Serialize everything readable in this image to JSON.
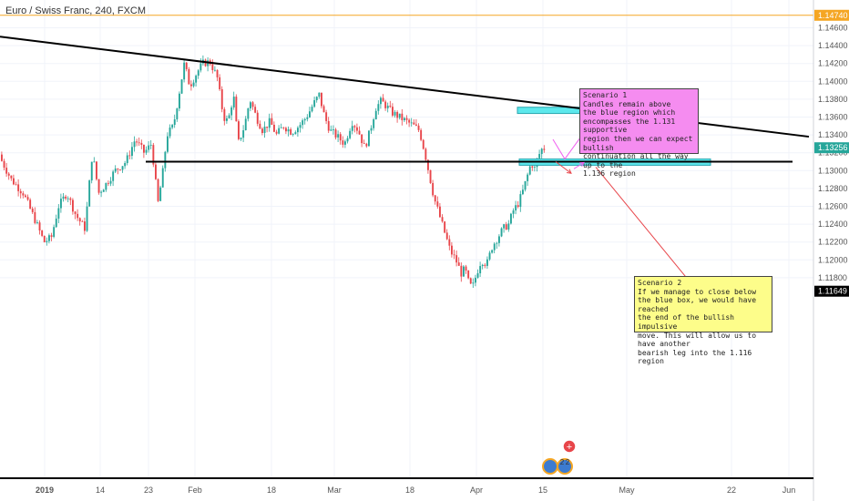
{
  "chart_title": "Euro / Swiss Franc, 240, FXCM",
  "chart_data": {
    "type": "candlestick",
    "symbol": "EURCHF",
    "timeframe": "240",
    "source": "FXCM",
    "y_ticks": [
      "1.14600",
      "1.14400",
      "1.14200",
      "1.14000",
      "1.13800",
      "1.13600",
      "1.13400",
      "1.13200",
      "1.13000",
      "1.12800",
      "1.12600",
      "1.12400",
      "1.12200",
      "1.12000",
      "1.11800"
    ],
    "y_tick_values": [
      1.146,
      1.144,
      1.142,
      1.14,
      1.138,
      1.136,
      1.134,
      1.132,
      1.13,
      1.128,
      1.126,
      1.124,
      1.122,
      1.12,
      1.118
    ],
    "x_ticks": [
      "2019",
      "14",
      "23",
      "Feb",
      "18",
      "Mar",
      "18",
      "Apr",
      "15",
      "May",
      "22",
      "Jun"
    ],
    "price_labels": [
      {
        "text": "1.14740",
        "value": 1.1474,
        "color": "#f5a623"
      },
      {
        "text": "1.13256",
        "value": 1.13256,
        "color": "#26a69a"
      },
      {
        "text": "1.11649",
        "value": 1.11649,
        "color": "#000000"
      }
    ],
    "price_path": [
      [
        0,
        1.1318
      ],
      [
        14,
        1.129
      ],
      [
        27,
        1.1275
      ],
      [
        40,
        1.1245
      ],
      [
        50,
        1.122
      ],
      [
        58,
        1.1225
      ],
      [
        66,
        1.126
      ],
      [
        75,
        1.1275
      ],
      [
        85,
        1.125
      ],
      [
        95,
        1.1235
      ],
      [
        103,
        1.132
      ],
      [
        110,
        1.1275
      ],
      [
        118,
        1.1285
      ],
      [
        128,
        1.13
      ],
      [
        140,
        1.131
      ],
      [
        150,
        1.1335
      ],
      [
        160,
        1.132
      ],
      [
        168,
        1.133
      ],
      [
        175,
        1.1263
      ],
      [
        180,
        1.1295
      ],
      [
        185,
        1.134
      ],
      [
        192,
        1.135
      ],
      [
        198,
        1.1385
      ],
      [
        204,
        1.142
      ],
      [
        210,
        1.1395
      ],
      [
        218,
        1.141
      ],
      [
        224,
        1.142
      ],
      [
        232,
        1.1422
      ],
      [
        240,
        1.1405
      ],
      [
        247,
        1.136
      ],
      [
        252,
        1.1355
      ],
      [
        258,
        1.1385
      ],
      [
        263,
        1.133
      ],
      [
        270,
        1.135
      ],
      [
        276,
        1.138
      ],
      [
        283,
        1.136
      ],
      [
        290,
        1.1345
      ],
      [
        298,
        1.1355
      ],
      [
        305,
        1.134
      ],
      [
        313,
        1.135
      ],
      [
        322,
        1.1343
      ],
      [
        330,
        1.135
      ],
      [
        338,
        1.136
      ],
      [
        346,
        1.1375
      ],
      [
        352,
        1.1385
      ],
      [
        358,
        1.136
      ],
      [
        364,
        1.1345
      ],
      [
        372,
        1.1338
      ],
      [
        380,
        1.133
      ],
      [
        388,
        1.1355
      ],
      [
        395,
        1.1345
      ],
      [
        402,
        1.1325
      ],
      [
        408,
        1.1345
      ],
      [
        414,
        1.137
      ],
      [
        420,
        1.1378
      ],
      [
        426,
        1.1372
      ],
      [
        432,
        1.1365
      ],
      [
        440,
        1.136
      ],
      [
        448,
        1.1355
      ],
      [
        456,
        1.135
      ],
      [
        462,
        1.1345
      ],
      [
        468,
        1.132
      ],
      [
        474,
        1.129
      ],
      [
        478,
        1.127
      ],
      [
        484,
        1.125
      ],
      [
        490,
        1.123
      ],
      [
        496,
        1.121
      ],
      [
        502,
        1.12
      ],
      [
        508,
        1.1185
      ],
      [
        512,
        1.119
      ],
      [
        516,
        1.1175
      ],
      [
        520,
        1.1168
      ],
      [
        525,
        1.1185
      ],
      [
        530,
        1.12
      ],
      [
        536,
        1.1195
      ],
      [
        542,
        1.1215
      ],
      [
        548,
        1.1225
      ],
      [
        554,
        1.1235
      ],
      [
        560,
        1.124
      ],
      [
        565,
        1.1255
      ],
      [
        570,
        1.1262
      ],
      [
        575,
        1.1275
      ],
      [
        580,
        1.1292
      ],
      [
        585,
        1.131
      ],
      [
        588,
        1.13
      ],
      [
        592,
        1.1315
      ],
      [
        597,
        1.1325
      ]
    ],
    "trendlines": [
      {
        "name": "descending-resistance",
        "color": "#000000",
        "points": [
          [
            0,
            1.145
          ],
          [
            888,
            1.1338
          ]
        ]
      },
      {
        "name": "horizontal-support",
        "color": "#000000",
        "points": [
          [
            160,
            1.131
          ],
          [
            870,
            1.131
          ]
        ]
      }
    ],
    "zones": [
      {
        "name": "upper-zone",
        "color": "#5ce8ec",
        "x": [
          568,
          720
        ],
        "y": [
          1.1364,
          1.1371
        ]
      },
      {
        "name": "blue-box",
        "color": "#5ce8ec",
        "x": [
          570,
          780
        ],
        "y": [
          1.1306,
          1.1313
        ]
      }
    ],
    "arrows": [
      {
        "color": "#f15ff0",
        "points": [
          [
            607,
            1.1335
          ],
          [
            620,
            1.1313
          ],
          [
            652,
            1.1358
          ]
        ]
      },
      {
        "color": "#f15ff0",
        "points": [
          [
            630,
            1.1302
          ],
          [
            641,
            1.1309
          ]
        ]
      },
      {
        "color": "#e8454a",
        "points": [
          [
            610,
            1.131
          ],
          [
            627,
            1.1297
          ]
        ]
      },
      {
        "color": "#e8454a",
        "points": [
          [
            654,
            1.1304
          ],
          [
            760,
            1.1172
          ]
        ]
      }
    ]
  },
  "notes": {
    "scenario1": "Scenario 1\nCandles remain above\nthe blue region which\nencompasses the 1.131 supportive\nregion then we can expect bullish\ncontinuation all the way up to the\n 1.136 region",
    "scenario2": "Scenario 2\nIf we manage to close below\nthe blue box, we would have reached\nthe end of the bullish impulsive\nmove. This will allow us to have another\nbearish leg into the 1.116 region"
  },
  "event_markers": [
    "2",
    "2"
  ],
  "colors": {
    "up": "#26a69a",
    "down": "#e8454a",
    "grid": "#f0f3fa",
    "axis": "#d0d3da"
  }
}
